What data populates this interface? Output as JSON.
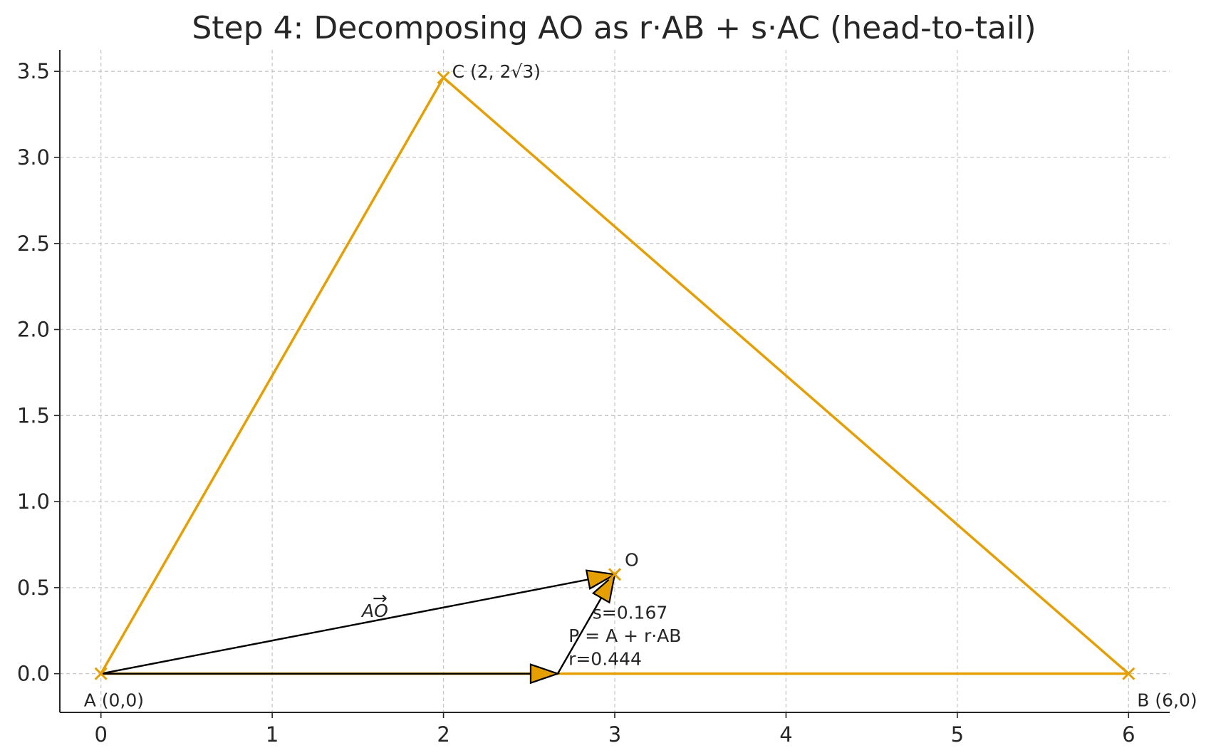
{
  "colors": {
    "triangle": "#E69F00",
    "vector": "#000000",
    "grid": "#c8c8c8",
    "axis": "#262626"
  },
  "chart_data": {
    "type": "line",
    "title": "Step 4: Decomposing AO as r·AB + s·AC (head-to-tail)",
    "xlabel": "",
    "ylabel": "",
    "xlim": [
      -0.24,
      6.24
    ],
    "ylim": [
      -0.225,
      3.625
    ],
    "grid": true,
    "x_ticks": [
      0,
      1,
      2,
      3,
      4,
      5,
      6
    ],
    "y_ticks": [
      0.0,
      0.5,
      1.0,
      1.5,
      2.0,
      2.5,
      3.0,
      3.5
    ],
    "x_tick_labels": [
      "0",
      "1",
      "2",
      "3",
      "4",
      "5",
      "6"
    ],
    "y_tick_labels": [
      "0.0",
      "0.5",
      "1.0",
      "1.5",
      "2.0",
      "2.5",
      "3.0",
      "3.5"
    ],
    "triangle": [
      [
        0,
        0
      ],
      [
        6,
        0
      ],
      [
        2,
        3.464
      ],
      [
        0,
        0
      ]
    ],
    "points": [
      {
        "name": "A",
        "x": 0,
        "y": 0,
        "label": "A (0,0)"
      },
      {
        "name": "B",
        "x": 6,
        "y": 0,
        "label": "B (6,0)"
      },
      {
        "name": "C",
        "x": 2,
        "y": 3.464,
        "label": "C (2, 2√3)"
      },
      {
        "name": "O",
        "x": 3,
        "y": 0.577,
        "label": "O"
      }
    ],
    "vectors": [
      {
        "name": "AO",
        "from": [
          0,
          0
        ],
        "to": [
          3,
          0.577
        ],
        "label": "AO",
        "head": "orange"
      },
      {
        "name": "r·AB",
        "from": [
          0,
          0
        ],
        "to": [
          2.667,
          0
        ],
        "label": "",
        "head": "orange"
      },
      {
        "name": "s·AC",
        "from": [
          2.667,
          0
        ],
        "to": [
          3,
          0.577
        ],
        "label": "",
        "head": "orange"
      }
    ],
    "annotations": [
      {
        "text": "s=0.167",
        "x": 2.87,
        "y": 0.32
      },
      {
        "text": "P = A + r·AB",
        "x": 2.73,
        "y": 0.185
      },
      {
        "text": "r=0.444",
        "x": 2.73,
        "y": 0.05
      }
    ],
    "vector_label": "AO"
  }
}
